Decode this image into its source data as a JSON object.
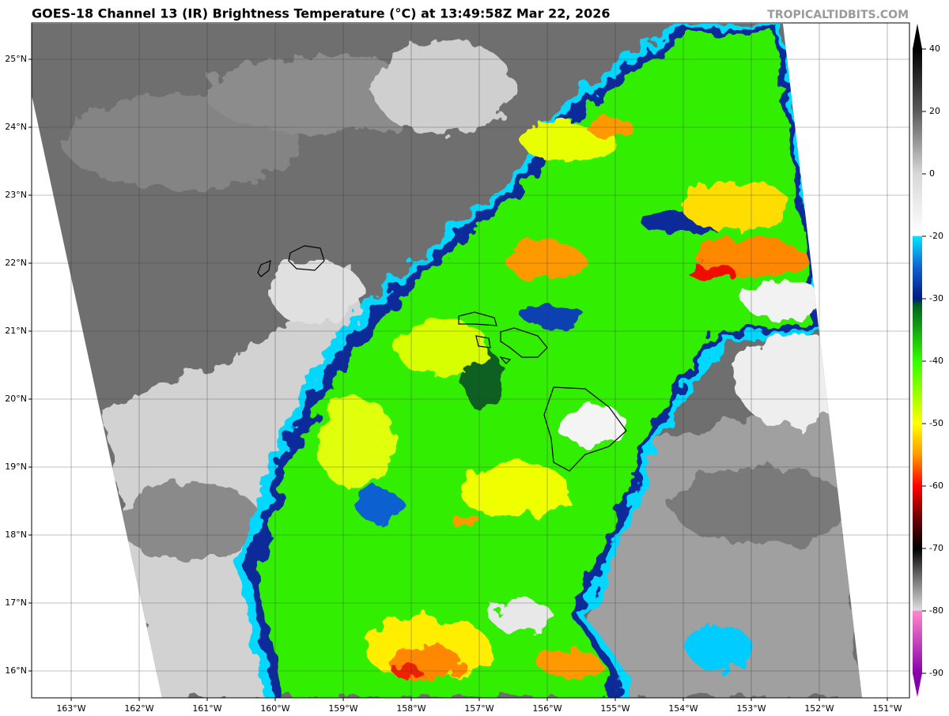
{
  "header": {
    "title": "GOES-18 Channel 13 (IR) Brightness Temperature (°C) at 13:49:58Z Mar 22, 2026",
    "credit": "TROPICALTIDBITS.COM"
  },
  "map": {
    "lat_labels": [
      "25°N",
      "24°N",
      "23°N",
      "22°N",
      "21°N",
      "20°N",
      "19°N",
      "18°N",
      "17°N",
      "16°N"
    ],
    "lon_labels": [
      "163°W",
      "162°W",
      "161°W",
      "160°W",
      "159°W",
      "158°W",
      "157°W",
      "156°W",
      "155°W",
      "154°W",
      "153°W",
      "152°W",
      "151°W"
    ]
  },
  "colorbar": {
    "ticks": [
      40,
      20,
      0,
      -20,
      -30,
      -40,
      -50,
      -60,
      -70,
      -80,
      -90
    ]
  }
}
